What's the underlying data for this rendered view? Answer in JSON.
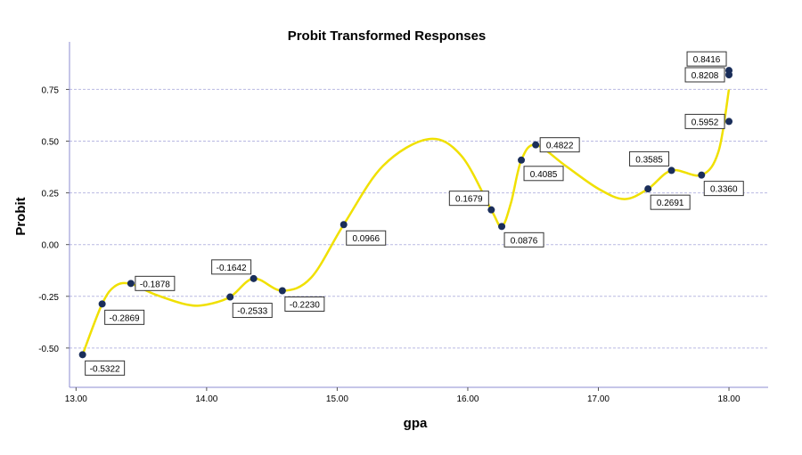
{
  "chart_data": {
    "type": "scatter",
    "title": "Probit Transformed Responses",
    "xlabel": "gpa",
    "ylabel": "Probit",
    "xlim": [
      12.95,
      18.3
    ],
    "ylim": [
      -0.69,
      0.98
    ],
    "x_ticks": [
      13,
      14,
      15,
      16,
      17,
      18
    ],
    "x_tick_labels": [
      "13.00",
      "14.00",
      "15.00",
      "16.00",
      "17.00",
      "18.00"
    ],
    "y_ticks": [
      -0.5,
      -0.25,
      0,
      0.25,
      0.5,
      0.75
    ],
    "y_tick_labels": [
      "-0.50",
      "-0.25",
      "0.00",
      "0.25",
      "0.50",
      "0.75"
    ],
    "grid": true,
    "legend": "none",
    "colors": {
      "point": "#1a2e5a",
      "curve": "#f0e000",
      "grid": "#b9b9e2",
      "axis": "#8c8cd0"
    },
    "points": [
      {
        "x": 13.05,
        "y": -0.5322,
        "label": "-0.5322",
        "label_pos": "br"
      },
      {
        "x": 13.2,
        "y": -0.2869,
        "label": "-0.2869",
        "label_pos": "br"
      },
      {
        "x": 13.42,
        "y": -0.1878,
        "label": "-0.1878",
        "label_pos": "r"
      },
      {
        "x": 14.18,
        "y": -0.2533,
        "label": "-0.2533",
        "label_pos": "br"
      },
      {
        "x": 14.36,
        "y": -0.1642,
        "label": "-0.1642",
        "label_pos": "tl"
      },
      {
        "x": 14.58,
        "y": -0.223,
        "label": "-0.2230",
        "label_pos": "br"
      },
      {
        "x": 15.05,
        "y": 0.0966,
        "label": "0.0966",
        "label_pos": "br"
      },
      {
        "x": 16.18,
        "y": 0.1679,
        "label": "0.1679",
        "label_pos": "tl"
      },
      {
        "x": 16.26,
        "y": 0.0876,
        "label": "0.0876",
        "label_pos": "br"
      },
      {
        "x": 16.41,
        "y": 0.4085,
        "label": "0.4085",
        "label_pos": "br"
      },
      {
        "x": 16.52,
        "y": 0.4822,
        "label": "0.4822",
        "label_pos": "r"
      },
      {
        "x": 17.38,
        "y": 0.2691,
        "label": "0.2691",
        "label_pos": "br"
      },
      {
        "x": 17.56,
        "y": 0.3585,
        "label": "0.3585",
        "label_pos": "tl"
      },
      {
        "x": 17.79,
        "y": 0.336,
        "label": "0.3360",
        "label_pos": "br"
      },
      {
        "x": 18.0,
        "y": 0.5952,
        "label": "0.5952",
        "label_pos": "l"
      },
      {
        "x": 18.0,
        "y": 0.8208,
        "label": "0.8208",
        "label_pos": "l"
      },
      {
        "x": 18.0,
        "y": 0.8416,
        "label": "0.8416",
        "label_pos": "tl"
      }
    ],
    "curve": {
      "x": [
        13.05,
        13.2,
        13.3,
        13.42,
        13.6,
        13.85,
        14.0,
        14.18,
        14.36,
        14.58,
        14.8,
        15.05,
        15.35,
        15.7,
        15.95,
        16.18,
        16.26,
        16.33,
        16.41,
        16.52,
        16.75,
        17.0,
        17.2,
        17.38,
        17.56,
        17.79,
        17.92,
        18.0
      ],
      "y": [
        -0.5322,
        -0.2869,
        -0.2,
        -0.19,
        -0.24,
        -0.29,
        -0.29,
        -0.2533,
        -0.1642,
        -0.223,
        -0.16,
        0.0966,
        0.38,
        0.51,
        0.43,
        0.1679,
        0.0876,
        0.2,
        0.4085,
        0.4822,
        0.38,
        0.27,
        0.22,
        0.2691,
        0.3585,
        0.336,
        0.45,
        0.75
      ]
    }
  }
}
